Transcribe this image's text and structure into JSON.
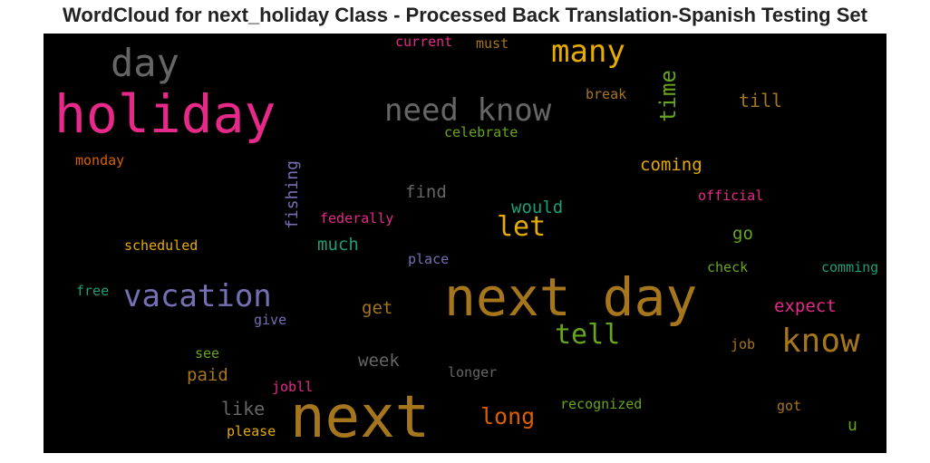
{
  "title": "WordCloud for next_holiday Class - Processed Back Translation-Spanish Testing Set",
  "chart_data": {
    "type": "wordcloud",
    "background": "#000000",
    "words": [
      {
        "text": "holiday",
        "color": "#e7298a"
      },
      {
        "text": "next",
        "color": "#a6761d"
      },
      {
        "text": "next day",
        "color": "#a6761d"
      },
      {
        "text": "day",
        "color": "#666666"
      },
      {
        "text": "need know",
        "color": "#666666"
      },
      {
        "text": "vacation",
        "color": "#7570b3"
      },
      {
        "text": "many",
        "color": "#e6ab02"
      },
      {
        "text": "know",
        "color": "#a6761d"
      },
      {
        "text": "time",
        "color": "#66a61e"
      },
      {
        "text": "tell",
        "color": "#66a61e"
      },
      {
        "text": "let",
        "color": "#e6ab02"
      },
      {
        "text": "long",
        "color": "#d95f02"
      },
      {
        "text": "fishing",
        "color": "#7570b3"
      },
      {
        "text": "coming",
        "color": "#e6ab02"
      },
      {
        "text": "would",
        "color": "#1b9e77"
      },
      {
        "text": "till",
        "color": "#a6761d"
      },
      {
        "text": "find",
        "color": "#666666"
      },
      {
        "text": "much",
        "color": "#1b9e77"
      },
      {
        "text": "get",
        "color": "#a6761d"
      },
      {
        "text": "week",
        "color": "#666666"
      },
      {
        "text": "like",
        "color": "#666666"
      },
      {
        "text": "expect",
        "color": "#e7298a"
      },
      {
        "text": "go",
        "color": "#66a61e"
      },
      {
        "text": "paid",
        "color": "#a6761d"
      },
      {
        "text": "celebrate",
        "color": "#66a61e"
      },
      {
        "text": "break",
        "color": "#a6761d"
      },
      {
        "text": "current",
        "color": "#e7298a"
      },
      {
        "text": "must",
        "color": "#a6761d"
      },
      {
        "text": "monday",
        "color": "#d95f02"
      },
      {
        "text": "federally",
        "color": "#e7298a"
      },
      {
        "text": "official",
        "color": "#e7298a"
      },
      {
        "text": "scheduled",
        "color": "#e6ab02"
      },
      {
        "text": "place",
        "color": "#7570b3"
      },
      {
        "text": "check",
        "color": "#66a61e"
      },
      {
        "text": "comming",
        "color": "#1b9e77"
      },
      {
        "text": "free",
        "color": "#1b9e77"
      },
      {
        "text": "give",
        "color": "#7570b3"
      },
      {
        "text": "see",
        "color": "#66a61e"
      },
      {
        "text": "job",
        "color": "#a6761d"
      },
      {
        "text": "longer",
        "color": "#666666"
      },
      {
        "text": "jobll",
        "color": "#e7298a"
      },
      {
        "text": "recognized",
        "color": "#66a61e"
      },
      {
        "text": "got",
        "color": "#a6761d"
      },
      {
        "text": "please",
        "color": "#e6ab02"
      },
      {
        "text": "u",
        "color": "#66a61e"
      }
    ]
  }
}
